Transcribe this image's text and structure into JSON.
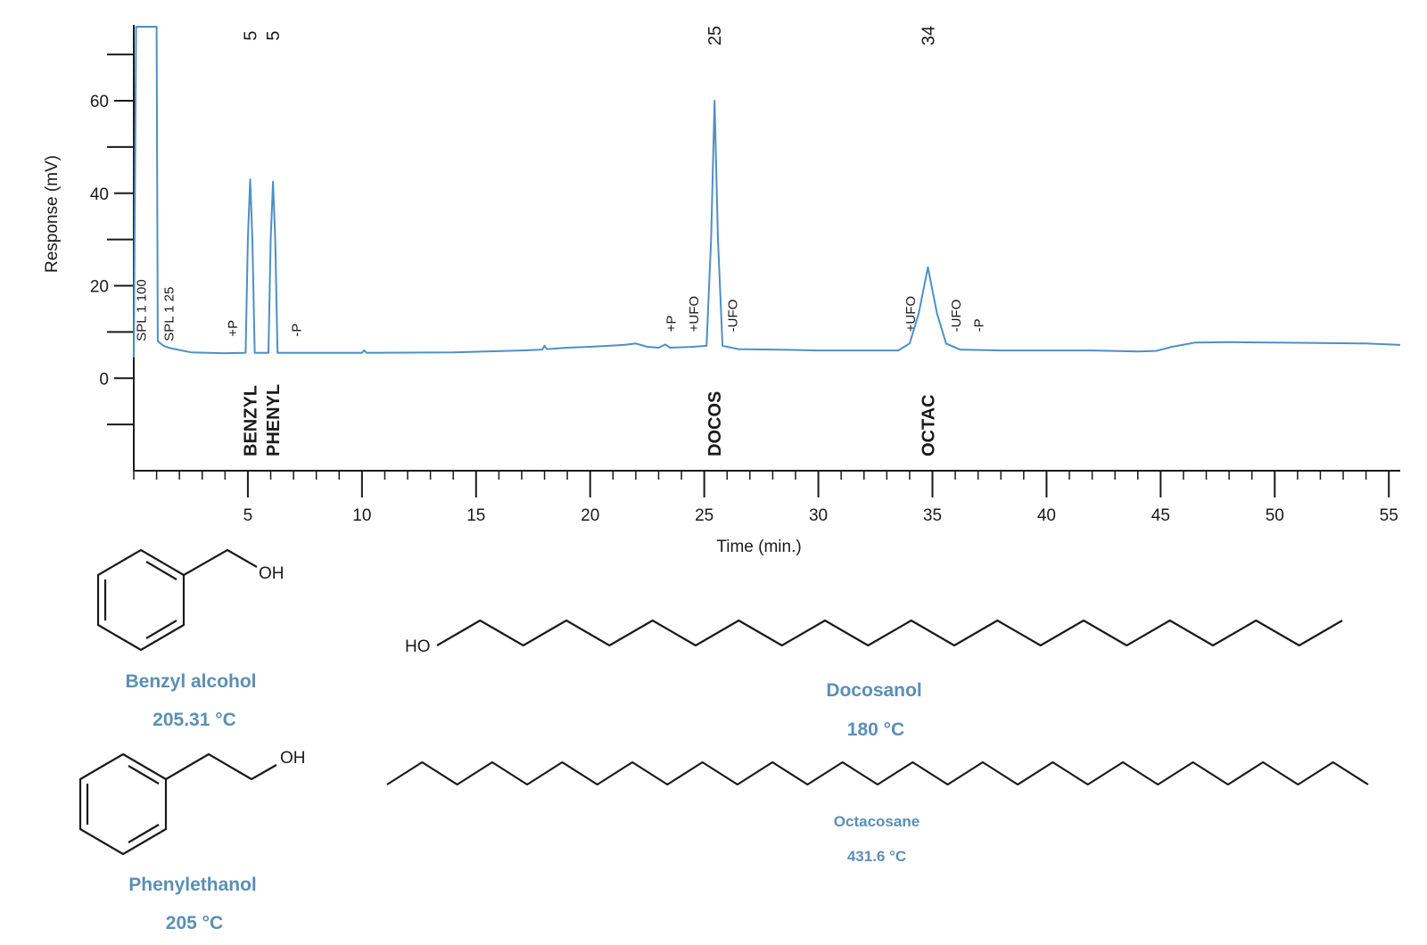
{
  "chart_data": {
    "type": "line",
    "xlabel": "Time (min.)",
    "ylabel": "Response (mV)",
    "xlim": [
      0,
      55.5
    ],
    "ylim": [
      -20,
      76
    ],
    "x_ticks": [
      5,
      10,
      15,
      20,
      25,
      30,
      35,
      40,
      45,
      50,
      55
    ],
    "y_ticks": [
      0,
      20,
      40,
      60
    ],
    "line_color": "#4f8fc4",
    "series": [
      {
        "points": [
          [
            0.0,
            4.5
          ],
          [
            0.1,
            76
          ],
          [
            1.0,
            76
          ],
          [
            1.05,
            8.0
          ],
          [
            1.3,
            7.0
          ],
          [
            1.6,
            6.5
          ],
          [
            2.5,
            5.6
          ],
          [
            4.0,
            5.4
          ],
          [
            4.9,
            5.5
          ],
          [
            5.0,
            30.0
          ],
          [
            5.1,
            43.0
          ],
          [
            5.2,
            30.0
          ],
          [
            5.3,
            5.5
          ],
          [
            5.9,
            5.5
          ],
          [
            6.0,
            30.0
          ],
          [
            6.1,
            42.5
          ],
          [
            6.2,
            30.0
          ],
          [
            6.3,
            5.5
          ],
          [
            8.0,
            5.5
          ],
          [
            10.0,
            5.5
          ],
          [
            10.1,
            6.0
          ],
          [
            10.2,
            5.5
          ],
          [
            14.0,
            5.6
          ],
          [
            17.0,
            6.0
          ],
          [
            17.9,
            6.2
          ],
          [
            18.0,
            7.0
          ],
          [
            18.1,
            6.3
          ],
          [
            19.0,
            6.6
          ],
          [
            20.0,
            6.8
          ],
          [
            21.5,
            7.2
          ],
          [
            22.0,
            7.5
          ],
          [
            22.5,
            6.8
          ],
          [
            23.0,
            6.6
          ],
          [
            23.3,
            7.3
          ],
          [
            23.5,
            6.6
          ],
          [
            24.5,
            6.8
          ],
          [
            25.1,
            7.0
          ],
          [
            25.3,
            30.0
          ],
          [
            25.45,
            60.0
          ],
          [
            25.6,
            30.0
          ],
          [
            25.8,
            7.0
          ],
          [
            26.5,
            6.3
          ],
          [
            28.0,
            6.2
          ],
          [
            30.0,
            6.0
          ],
          [
            32.0,
            6.0
          ],
          [
            33.5,
            6.0
          ],
          [
            34.0,
            7.5
          ],
          [
            34.4,
            14.0
          ],
          [
            34.8,
            24.0
          ],
          [
            35.2,
            14.0
          ],
          [
            35.6,
            7.5
          ],
          [
            36.2,
            6.2
          ],
          [
            38.0,
            6.0
          ],
          [
            40.0,
            6.0
          ],
          [
            42.0,
            6.0
          ],
          [
            44.0,
            5.8
          ],
          [
            44.8,
            5.9
          ],
          [
            45.5,
            6.8
          ],
          [
            46.5,
            7.7
          ],
          [
            48.0,
            7.8
          ],
          [
            50.0,
            7.7
          ],
          [
            52.0,
            7.6
          ],
          [
            54.0,
            7.5
          ],
          [
            55.5,
            7.2
          ]
        ]
      }
    ],
    "peak_names": [
      {
        "x": 5.1,
        "label": "BENZYL"
      },
      {
        "x": 6.1,
        "label": "PHENYL"
      },
      {
        "x": 25.45,
        "label": "DOCOS"
      },
      {
        "x": 34.8,
        "label": "OCTAC"
      }
    ],
    "peak_top_labels": [
      {
        "x": 5.1,
        "label": "5"
      },
      {
        "x": 6.1,
        "label": "5"
      },
      {
        "x": 25.45,
        "label": "25"
      },
      {
        "x": 34.8,
        "label": "34"
      }
    ],
    "event_labels": [
      {
        "x": 0.3,
        "y": 8,
        "label": "SPL 1 100"
      },
      {
        "x": 1.5,
        "y": 8,
        "label": "SPL 1 25"
      },
      {
        "x": 4.3,
        "y": 9,
        "label": "+P"
      },
      {
        "x": 7.1,
        "y": 9,
        "label": "-P"
      },
      {
        "x": 23.5,
        "y": 10,
        "label": "+P"
      },
      {
        "x": 24.5,
        "y": 10,
        "label": "+UFO"
      },
      {
        "x": 26.2,
        "y": 10,
        "label": "-UFO"
      },
      {
        "x": 34.0,
        "y": 10,
        "label": "+UFO"
      },
      {
        "x": 36.0,
        "y": 10,
        "label": "-UFO"
      },
      {
        "x": 37.0,
        "y": 10,
        "label": "-P"
      }
    ]
  },
  "molecules": {
    "benzyl": {
      "name": "Benzyl alcohol",
      "bp": "205.31   °C",
      "oh": "OH"
    },
    "phenyl": {
      "name": "Phenylethanol",
      "bp": "205   °C",
      "oh": "OH"
    },
    "docos": {
      "name": "Docosanol",
      "bp": "180   °C",
      "ho": "HO"
    },
    "octac": {
      "name": "Octacosane",
      "bp": "431.6   °C"
    }
  }
}
